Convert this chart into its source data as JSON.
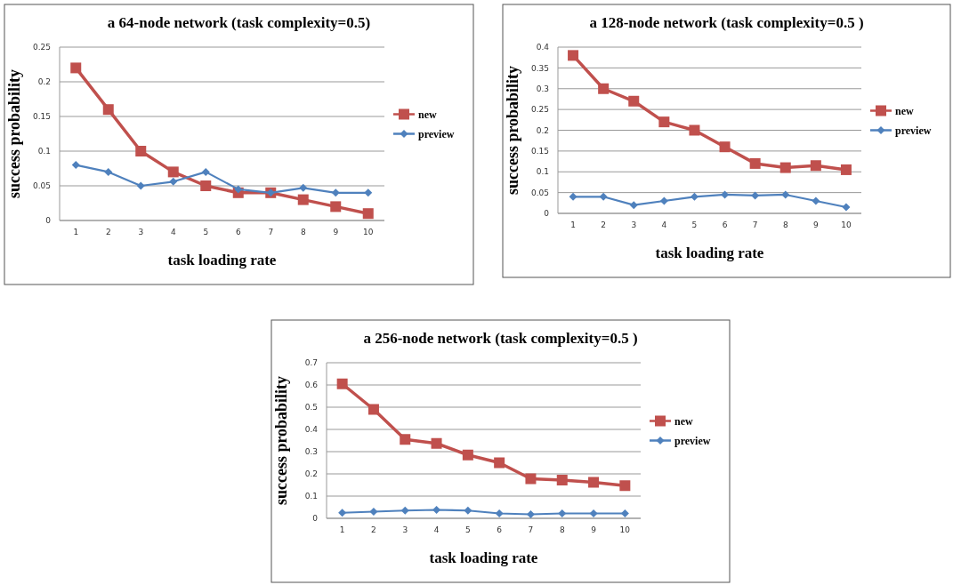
{
  "chart_data": [
    {
      "type": "line",
      "title": "a 64-node network (task complexity=0.5)",
      "xlabel": "task loading rate",
      "ylabel": "success probability",
      "categories": [
        "1",
        "2",
        "3",
        "4",
        "5",
        "6",
        "7",
        "8",
        "9",
        "10"
      ],
      "ylim": [
        0,
        0.25
      ],
      "yticks": [
        {
          "value": 0,
          "label": "0"
        },
        {
          "value": 0.05,
          "label": "0.05"
        },
        {
          "value": 0.1,
          "label": "0.1"
        },
        {
          "value": 0.15,
          "label": "0.15"
        },
        {
          "value": 0.2,
          "label": "0.2"
        },
        {
          "value": 0.25,
          "label": "0.25"
        }
      ],
      "grid": "y",
      "legend": "right",
      "series": [
        {
          "name": "new",
          "color": "#c0504d",
          "marker": "square",
          "values": [
            0.22,
            0.16,
            0.1,
            0.07,
            0.05,
            0.04,
            0.04,
            0.03,
            0.02,
            0.01
          ]
        },
        {
          "name": "preview",
          "color": "#4f81bd",
          "marker": "diamond",
          "values": [
            0.08,
            0.07,
            0.05,
            0.056,
            0.07,
            0.045,
            0.04,
            0.047,
            0.04,
            0.04
          ]
        }
      ]
    },
    {
      "type": "line",
      "title": "a 128-node network (task complexity=0.5 )",
      "xlabel": "task loading rate",
      "ylabel": "success probability",
      "categories": [
        "1",
        "2",
        "3",
        "4",
        "5",
        "6",
        "7",
        "8",
        "9",
        "10"
      ],
      "ylim": [
        0,
        0.4
      ],
      "yticks": [
        {
          "value": 0,
          "label": "0"
        },
        {
          "value": 0.05,
          "label": "0.05"
        },
        {
          "value": 0.1,
          "label": "0.1"
        },
        {
          "value": 0.15,
          "label": "0.15"
        },
        {
          "value": 0.2,
          "label": "0.2"
        },
        {
          "value": 0.25,
          "label": "0.25"
        },
        {
          "value": 0.3,
          "label": "0.3"
        },
        {
          "value": 0.35,
          "label": "0.35"
        },
        {
          "value": 0.4,
          "label": "0.4"
        }
      ],
      "grid": "y",
      "legend": "right",
      "series": [
        {
          "name": "new",
          "color": "#c0504d",
          "marker": "square",
          "values": [
            0.38,
            0.3,
            0.27,
            0.22,
            0.2,
            0.16,
            0.12,
            0.11,
            0.115,
            0.105
          ]
        },
        {
          "name": "preview",
          "color": "#4f81bd",
          "marker": "diamond",
          "values": [
            0.04,
            0.04,
            0.02,
            0.03,
            0.04,
            0.045,
            0.043,
            0.045,
            0.03,
            0.015
          ]
        }
      ]
    },
    {
      "type": "line",
      "title": "a 256-node network (task complexity=0.5 )",
      "xlabel": "task loading rate",
      "ylabel": "success probability",
      "categories": [
        "1",
        "2",
        "3",
        "4",
        "5",
        "6",
        "7",
        "8",
        "9",
        "10"
      ],
      "ylim": [
        0,
        0.7
      ],
      "yticks": [
        {
          "value": 0,
          "label": "0"
        },
        {
          "value": 0.1,
          "label": "0.1"
        },
        {
          "value": 0.2,
          "label": "0.2"
        },
        {
          "value": 0.3,
          "label": "0.3"
        },
        {
          "value": 0.4,
          "label": "0.4"
        },
        {
          "value": 0.5,
          "label": "0.5"
        },
        {
          "value": 0.6,
          "label": "0.6"
        },
        {
          "value": 0.7,
          "label": "0.7"
        }
      ],
      "grid": "y",
      "legend": "right",
      "series": [
        {
          "name": "new",
          "color": "#c0504d",
          "marker": "square",
          "values": [
            0.605,
            0.49,
            0.355,
            0.337,
            0.285,
            0.25,
            0.178,
            0.172,
            0.162,
            0.147
          ]
        },
        {
          "name": "preview",
          "color": "#4f81bd",
          "marker": "diamond",
          "values": [
            0.025,
            0.03,
            0.035,
            0.038,
            0.035,
            0.022,
            0.018,
            0.022,
            0.022,
            0.022
          ]
        }
      ]
    }
  ]
}
